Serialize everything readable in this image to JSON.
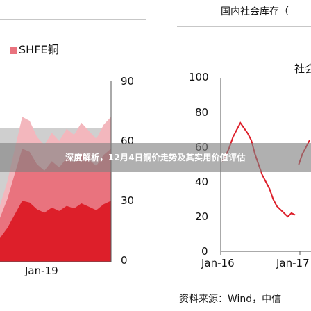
{
  "banner": {
    "title": "深度解析，12月4日铜价走势及其实用价值评估"
  },
  "left_chart": {
    "legend": "SHFE铜",
    "y_ticks": [
      "90",
      "60",
      "30",
      "0"
    ],
    "x_tick": "Jan-19",
    "colors": {
      "deep": "#dd1f2a",
      "mid": "#e9737e",
      "light": "#f3b7bd",
      "gray": "#cfcfcf"
    }
  },
  "right_chart": {
    "title": "国内社会库存（",
    "legend_partial": "社会",
    "y_ticks": [
      "100",
      "80",
      "60",
      "40",
      "20",
      "0"
    ],
    "x_ticks": [
      "Jan-16",
      "Jan-17"
    ],
    "line_color": "#dd1f2a"
  },
  "footer": {
    "source": "资料来源：Wind，中信"
  },
  "chart_data": [
    {
      "type": "area",
      "title": "",
      "series": [
        {
          "name": "SHFE铜",
          "values": [
            28,
            40,
            56,
            72,
            70,
            62,
            58,
            64,
            60,
            66,
            63,
            69,
            65,
            61,
            68,
            72
          ]
        }
      ],
      "ylim": [
        0,
        90
      ],
      "x_ticks": [
        "Jan-19"
      ]
    },
    {
      "type": "line",
      "title": "国内社会库存（",
      "series": [
        {
          "name": "社会",
          "values": [
            52,
            55,
            60,
            66,
            70,
            74,
            71,
            68,
            64,
            56,
            50,
            44,
            40,
            36,
            30,
            26,
            24,
            22,
            20,
            22,
            21,
            50,
            56,
            60,
            64
          ]
        }
      ],
      "ylim": [
        0,
        100
      ],
      "x_ticks": [
        "Jan-16",
        "Jan-17"
      ]
    }
  ]
}
